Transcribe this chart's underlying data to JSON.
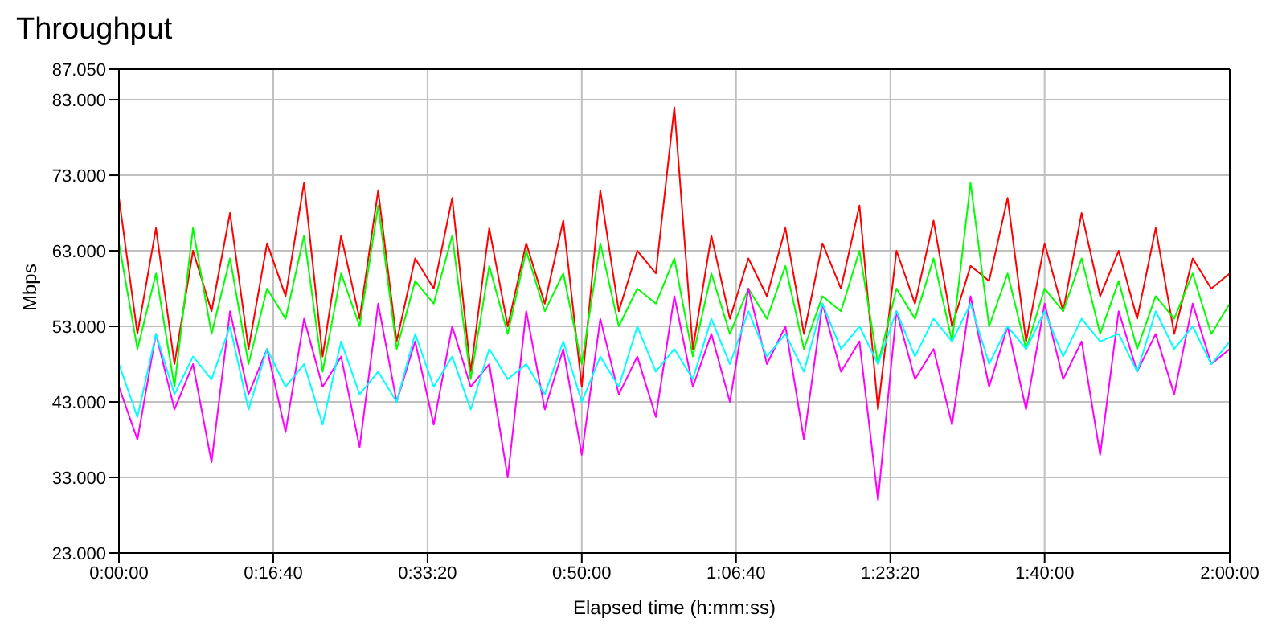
{
  "chart_data": {
    "type": "line",
    "title": "Throughput",
    "xlabel": "Elapsed time (h:mm:ss)",
    "ylabel": "Mbps",
    "x": [
      0,
      0.0333,
      0.0667,
      0.1,
      0.1333,
      0.1667,
      0.2,
      0.2333,
      0.2667,
      0.3,
      0.3333,
      0.3667,
      0.4,
      0.4333,
      0.4667,
      0.5,
      0.5333,
      0.5667,
      0.6,
      0.6333,
      0.6667,
      0.7,
      0.7333,
      0.7667,
      0.8,
      0.8333,
      0.8667,
      0.9,
      0.9333,
      0.9667,
      1,
      1.0333,
      1.0667,
      1.1,
      1.1333,
      1.1667,
      1.2,
      1.2333,
      1.2667,
      1.3,
      1.3333,
      1.3667,
      1.4,
      1.4333,
      1.4667,
      1.5,
      1.5333,
      1.5667,
      1.6,
      1.6333,
      1.6667,
      1.7,
      1.7333,
      1.7667,
      1.8,
      1.8333,
      1.8667,
      1.9,
      1.9333,
      1.9667,
      2
    ],
    "xlim": [
      0,
      2
    ],
    "xticks": [
      {
        "value": 0,
        "label": "0:00:00"
      },
      {
        "value": 0.2778,
        "label": "0:16:40"
      },
      {
        "value": 0.5556,
        "label": "0:33:20"
      },
      {
        "value": 0.8333,
        "label": "0:50:00"
      },
      {
        "value": 1.1111,
        "label": "1:06:40"
      },
      {
        "value": 1.3889,
        "label": "1:23:20"
      },
      {
        "value": 1.6667,
        "label": "1:40:00"
      },
      {
        "value": 2,
        "label": "2:00:00"
      }
    ],
    "ylim": [
      23,
      87.05
    ],
    "yticks": [
      {
        "value": 23,
        "label": "23.000"
      },
      {
        "value": 33,
        "label": "33.000"
      },
      {
        "value": 43,
        "label": "43.000"
      },
      {
        "value": 53,
        "label": "53.000"
      },
      {
        "value": 63,
        "label": "63.000"
      },
      {
        "value": 73,
        "label": "73.000"
      },
      {
        "value": 83,
        "label": "83.000"
      },
      {
        "value": 87.05,
        "label": "87.050"
      }
    ],
    "grid": true,
    "marker": "none",
    "line_style": "solid",
    "series": [
      {
        "color": "#ff0000",
        "values": [
          70,
          52,
          66,
          48,
          63,
          55,
          68,
          50,
          64,
          57,
          72,
          49,
          65,
          54,
          71,
          51,
          62,
          58,
          70,
          47,
          66,
          53,
          64,
          56,
          67,
          45,
          71,
          55,
          63,
          60,
          82,
          50,
          65,
          54,
          62,
          57,
          66,
          52,
          64,
          58,
          69,
          42,
          63,
          56,
          67,
          53,
          61,
          59,
          70,
          51,
          64,
          55,
          68,
          57,
          63,
          54,
          66,
          52,
          62,
          58,
          60
        ]
      },
      {
        "color": "#00ff00",
        "values": [
          64,
          50,
          60,
          45,
          66,
          52,
          62,
          48,
          58,
          54,
          65,
          47,
          60,
          53,
          69,
          50,
          59,
          56,
          65,
          46,
          61,
          52,
          63,
          55,
          60,
          48,
          64,
          53,
          58,
          56,
          62,
          49,
          60,
          52,
          58,
          54,
          61,
          50,
          57,
          55,
          63,
          48,
          58,
          54,
          62,
          51,
          72,
          53,
          60,
          50,
          58,
          55,
          62,
          52,
          59,
          50,
          57,
          54,
          60,
          52,
          56
        ]
      },
      {
        "color": "#ff00ff",
        "values": [
          45,
          38,
          52,
          42,
          48,
          35,
          55,
          44,
          50,
          39,
          54,
          45,
          49,
          37,
          56,
          43,
          51,
          40,
          53,
          45,
          48,
          33,
          55,
          42,
          50,
          36,
          54,
          44,
          49,
          41,
          57,
          45,
          52,
          43,
          58,
          48,
          53,
          38,
          56,
          47,
          51,
          30,
          55,
          46,
          50,
          40,
          57,
          45,
          53,
          42,
          56,
          46,
          51,
          36,
          55,
          47,
          52,
          44,
          56,
          48,
          50
        ]
      },
      {
        "color": "#00ffff",
        "values": [
          48,
          41,
          52,
          44,
          49,
          46,
          53,
          42,
          50,
          45,
          48,
          40,
          51,
          44,
          47,
          43,
          52,
          45,
          49,
          42,
          50,
          46,
          48,
          44,
          51,
          43,
          49,
          45,
          53,
          47,
          50,
          46,
          54,
          48,
          55,
          49,
          52,
          47,
          56,
          50,
          53,
          48,
          55,
          49,
          54,
          51,
          56,
          48,
          53,
          50,
          55,
          49,
          54,
          51,
          52,
          47,
          55,
          50,
          53,
          48,
          51
        ]
      }
    ]
  }
}
